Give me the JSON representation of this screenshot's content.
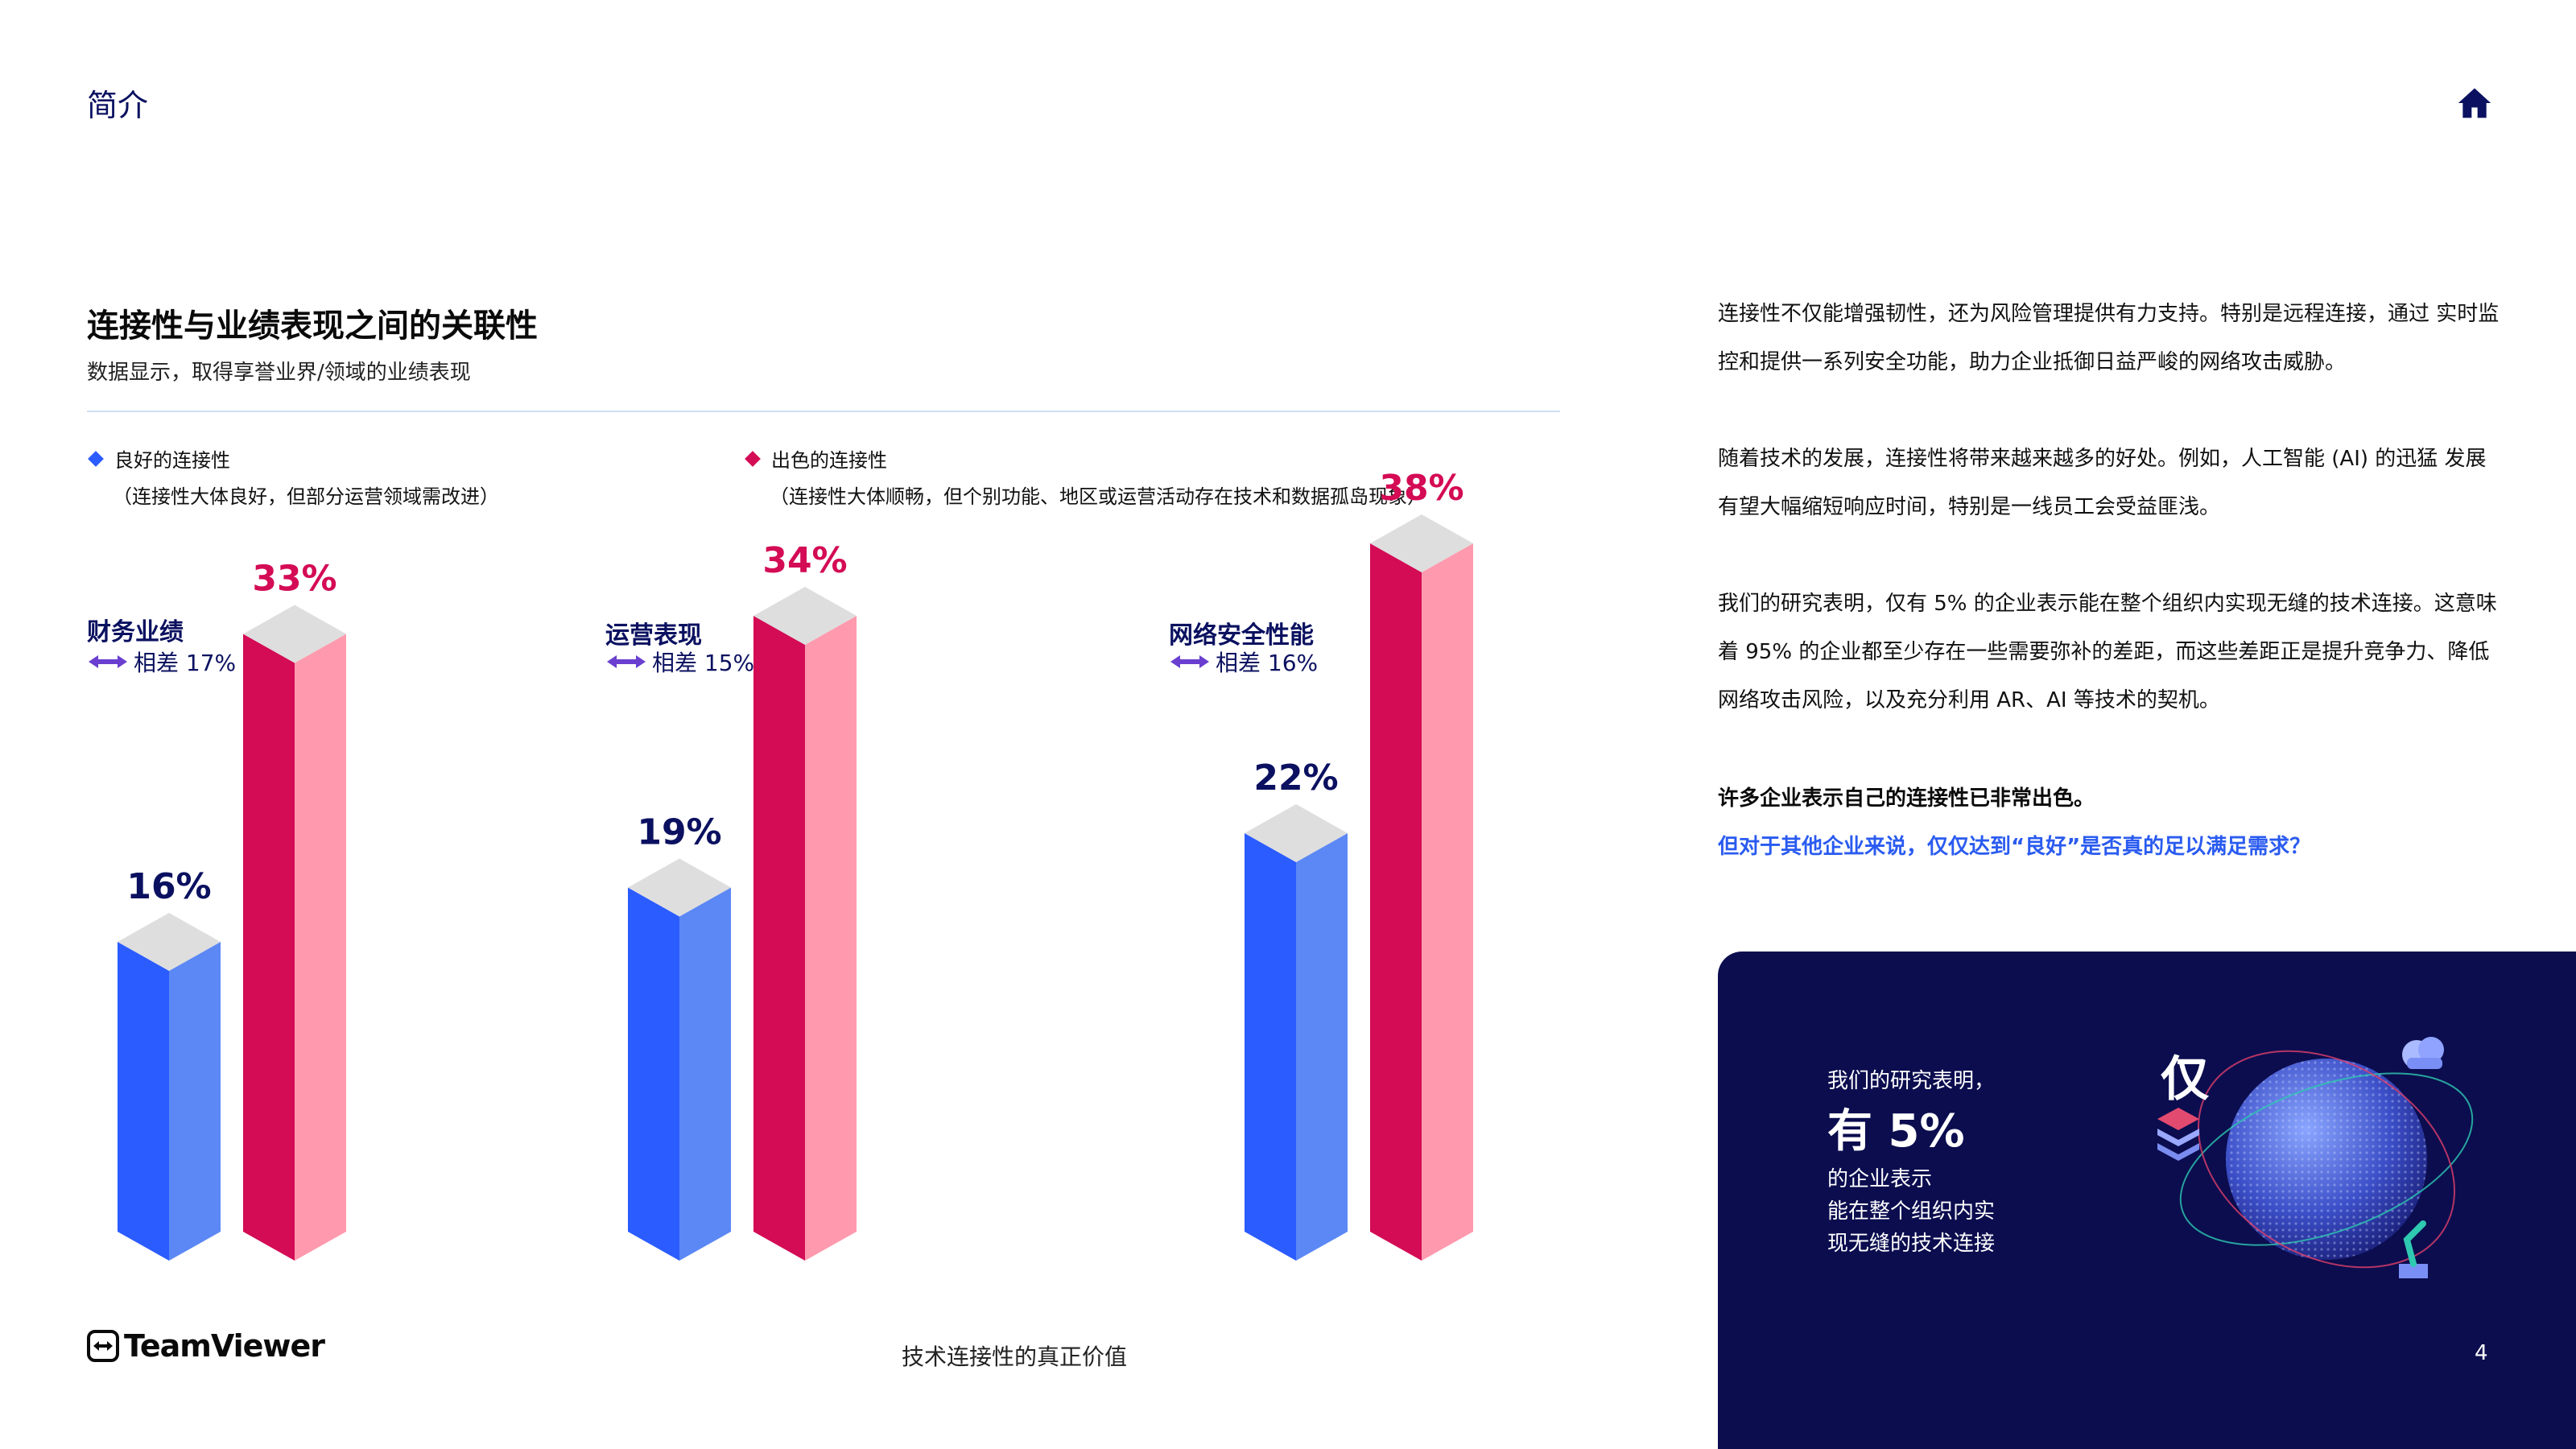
{
  "header": {
    "section": "简介"
  },
  "chart_data": {
    "type": "bar",
    "title": "连接性与业绩表现之间的关联性",
    "subtitle": "数据显示，取得享誉业界/领域的业绩表现",
    "categories": [
      "财务业绩",
      "运营表现",
      "网络安全性能"
    ],
    "gaps": [
      "相差 17%",
      "相差 15%",
      "相差 16%"
    ],
    "series": [
      {
        "name": "良好的连接性",
        "note": "（连接性大体良好，但部分运营领域需改进）",
        "values": [
          16,
          19,
          22
        ],
        "labels": [
          "16%",
          "19%",
          "22%"
        ],
        "color": "#2b5cff"
      },
      {
        "name": "出色的连接性",
        "note": "（连接性大体顺畅，但个别功能、地区或运营活动存在技术和数据孤岛现象）",
        "values": [
          33,
          34,
          38
        ],
        "labels": [
          "33%",
          "34%",
          "38%"
        ],
        "color": "#d40b55"
      }
    ],
    "legend": "top",
    "grid": false
  },
  "colors": {
    "navy": "#0b1160",
    "blue_front": "#2b5cff",
    "blue_side": "#5b88f5",
    "red_front": "#d40b55",
    "red_side": "#ff9aae",
    "top_face": "#dedede",
    "panel_bg": "#0b0d4f",
    "accent_blue": "#2a5bf0"
  },
  "icons": {
    "home": "home-icon",
    "logo": "teamviewer-logo-icon",
    "gap": "double-arrow-icon",
    "globe": "globe-illustration"
  },
  "footer": {
    "brand": "TeamViewer",
    "doc_title": "技术连接性的真正价值",
    "page": "4"
  },
  "text": {
    "p1": "连接性不仅能增强韧性，还为风险管理提供有力支持。特别是远程连接，通过  实时监控和提供一系列安全功能，助力企业抵御日益严峻的网络攻击威胁。",
    "p2": "随着技术的发展，连接性将带来越来越多的好处。例如，人工智能 (AI) 的迅猛  发展有望大幅缩短响应时间，特别是一线员工会受益匪浅。",
    "p3": "我们的研究表明，仅有 5% 的企业表示能在整个组织内实现无缝的技术连接。这意味着 95% 的企业都至少存在一些需要弥补的差距，而这些差距正是提升竞争力、降低网络攻击风险，以及充分利用 AR、AI 等技术的契机。",
    "p4": "许多企业表示自己的连接性已非常出色。",
    "p5": "但对于其他企业来说，仅仅达到“良好”是否真的足以满足需求？"
  },
  "panel": {
    "pre": "我们的研究表明，",
    "only": "仅",
    "big": "有 5%",
    "lines": [
      "的企业表示",
      "能在整个组织内实",
      "现无缝的技术连接"
    ]
  }
}
